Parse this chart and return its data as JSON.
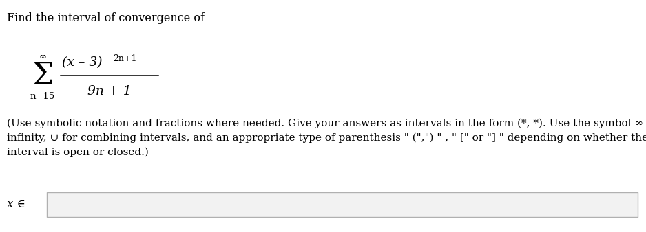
{
  "title_text": "Find the interval of convergence of",
  "line1": "(Use symbolic notation and fractions where needed. Give your answers as intervals in the form (*, *). Use the symbol ∞ for",
  "line2": "infinity, ∪ for combining intervals, and an appropriate type of parenthesis \" (\",\") \" , \" [\" or \"] \" depending on whether the",
  "line3": "interval is open or closed.)",
  "x_elem": "x ∈",
  "sum_upper": "∞",
  "sum_lower": "n=15",
  "numerator": "(x – 3)",
  "numerator_exp": "2n+1",
  "denominator": "9n + 1",
  "background_color": "#ffffff",
  "text_color": "#000000",
  "sigma_fontsize": 32,
  "title_fontsize": 11.5,
  "body_fontsize": 11.0,
  "math_fontsize": 13.5,
  "small_fontsize": 9.5,
  "xlabel_fontsize": 12,
  "input_box_facecolor": "#f2f2f2",
  "input_box_edgecolor": "#b0b0b0"
}
